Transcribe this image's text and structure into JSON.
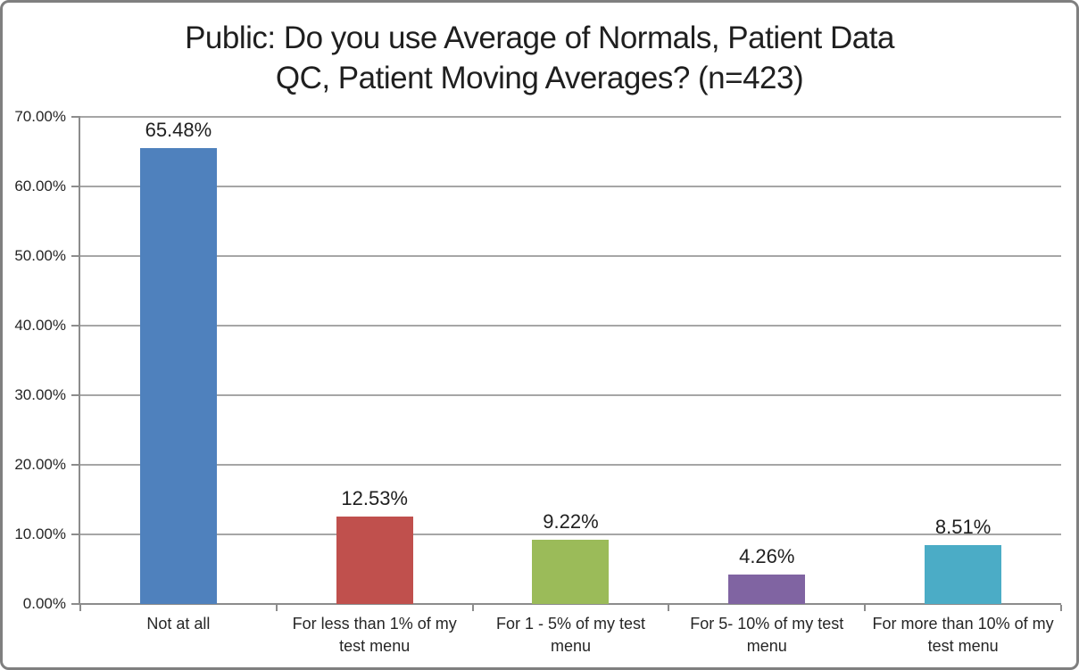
{
  "figure": {
    "background": "#FFFFFF",
    "border_color": "#7F7F7F"
  },
  "chart_data": {
    "type": "bar",
    "title": "Public: Do you use Average of Normals, Patient Data QC, Patient Moving Averages? (n=423)",
    "title_lines": [
      "Public: Do you use Average of Normals, Patient Data",
      "QC, Patient Moving Averages? (n=423)"
    ],
    "categories": [
      "Not at all",
      "For less than 1% of my test menu",
      "For 1 - 5% of my test menu",
      "For 5- 10% of my test menu",
      "For more than 10% of my test menu"
    ],
    "values": [
      65.48,
      12.53,
      9.22,
      4.26,
      8.51
    ],
    "value_labels": [
      "65.48%",
      "12.53%",
      "9.22%",
      "4.26%",
      "8.51%"
    ],
    "bar_colors": [
      "#4F81BD",
      "#C0504D",
      "#9BBB59",
      "#8064A2",
      "#4BACC6"
    ],
    "xlabel": "",
    "ylabel": "",
    "ylim": [
      0,
      70
    ],
    "y_ticks": [
      {
        "value": 0,
        "label": "0.00%"
      },
      {
        "value": 10,
        "label": "10.00%"
      },
      {
        "value": 20,
        "label": "20.00%"
      },
      {
        "value": 30,
        "label": "30.00%"
      },
      {
        "value": 40,
        "label": "40.00%"
      },
      {
        "value": 50,
        "label": "50.00%"
      },
      {
        "value": 60,
        "label": "60.00%"
      },
      {
        "value": 70,
        "label": "70.00%"
      }
    ],
    "grid": true,
    "legend": false,
    "gridline_color": "#A6A6A6",
    "axis_color": "#8C8C8C"
  }
}
